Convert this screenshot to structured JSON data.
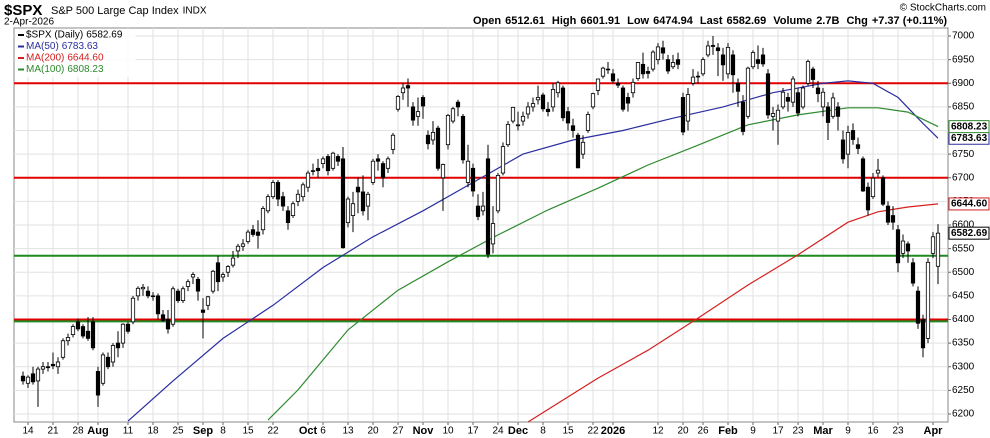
{
  "header": {
    "symbol": "$SPX",
    "name": "S&P 500 Large Cap Index",
    "exchange": "INDX",
    "date": "2-Apr-2026",
    "credit": "© StockCharts.com",
    "quote": [
      {
        "label": "Open",
        "value": 6512.61
      },
      {
        "label": "High",
        "value": 6601.91
      },
      {
        "label": "Low",
        "value": 6474.94
      },
      {
        "label": "Last",
        "value": 6582.69
      },
      {
        "label": "Volume",
        "value": "2.7B"
      },
      {
        "label": "Chg",
        "value": "+7.37 (+0.11%)"
      }
    ]
  },
  "chart_data": {
    "type": "candlestick",
    "color": "#000000",
    "up_fill": "#ffffff",
    "legend": {
      "name": "$SPX (Daily)",
      "last": 6582.69
    },
    "candles": [
      [
        6280,
        6290,
        6262,
        6270
      ],
      [
        6265,
        6282,
        6255,
        6278
      ],
      [
        6285,
        6300,
        6262,
        6268
      ],
      [
        6270,
        6300,
        6215,
        6295
      ],
      [
        6295,
        6310,
        6285,
        6300
      ],
      [
        6300,
        6310,
        6290,
        6298
      ],
      [
        6305,
        6330,
        6295,
        6302
      ],
      [
        6300,
        6320,
        6285,
        6310
      ],
      [
        6320,
        6360,
        6315,
        6355
      ],
      [
        6355,
        6370,
        6345,
        6362
      ],
      [
        6368,
        6390,
        6362,
        6385
      ],
      [
        6395,
        6402,
        6375,
        6380
      ],
      [
        6385,
        6390,
        6360,
        6365
      ],
      [
        6375,
        6405,
        6355,
        6360
      ],
      [
        6395,
        6405,
        6335,
        6340
      ],
      [
        6290,
        6300,
        6215,
        6240
      ],
      [
        6265,
        6330,
        6260,
        6325
      ],
      [
        6320,
        6330,
        6295,
        6300
      ],
      [
        6310,
        6350,
        6300,
        6345
      ],
      [
        6350,
        6375,
        6320,
        6340
      ],
      [
        6350,
        6392,
        6340,
        6390
      ],
      [
        6390,
        6395,
        6370,
        6375
      ],
      [
        6395,
        6450,
        6390,
        6445
      ],
      [
        6450,
        6470,
        6440,
        6466
      ],
      [
        6465,
        6475,
        6450,
        6468
      ],
      [
        6460,
        6470,
        6445,
        6450
      ],
      [
        6450,
        6458,
        6440,
        6450
      ],
      [
        6450,
        6455,
        6400,
        6412
      ],
      [
        6410,
        6420,
        6395,
        6398
      ],
      [
        6400,
        6420,
        6370,
        6380
      ],
      [
        6390,
        6470,
        6385,
        6465
      ],
      [
        6460,
        6465,
        6435,
        6440
      ],
      [
        6440,
        6470,
        6435,
        6465
      ],
      [
        6470,
        6485,
        6460,
        6480
      ],
      [
        6490,
        6500,
        6475,
        6495
      ],
      [
        6485,
        6490,
        6440,
        6460
      ],
      [
        6420,
        6445,
        6360,
        6415
      ],
      [
        6430,
        6450,
        6420,
        6448
      ],
      [
        6460,
        6505,
        6455,
        6502
      ],
      [
        6520,
        6535,
        6460,
        6480
      ],
      [
        6490,
        6500,
        6480,
        6495
      ],
      [
        6500,
        6515,
        6490,
        6512
      ],
      [
        6515,
        6545,
        6510,
        6530
      ],
      [
        6545,
        6560,
        6530,
        6555
      ],
      [
        6555,
        6570,
        6545,
        6560
      ],
      [
        6565,
        6590,
        6560,
        6585
      ],
      [
        6590,
        6600,
        6575,
        6580
      ],
      [
        6585,
        6610,
        6550,
        6578
      ],
      [
        6590,
        6640,
        6580,
        6635
      ],
      [
        6630,
        6665,
        6625,
        6660
      ],
      [
        6660,
        6695,
        6655,
        6690
      ],
      [
        6690,
        6695,
        6640,
        6655
      ],
      [
        6660,
        6670,
        6630,
        6640
      ],
      [
        6630,
        6640,
        6590,
        6605
      ],
      [
        6620,
        6650,
        6615,
        6645
      ],
      [
        6650,
        6675,
        6640,
        6665
      ],
      [
        6660,
        6690,
        6650,
        6685
      ],
      [
        6680,
        6715,
        6670,
        6710
      ],
      [
        6715,
        6730,
        6705,
        6715
      ],
      [
        6720,
        6740,
        6700,
        6715
      ],
      [
        6730,
        6745,
        6720,
        6740
      ],
      [
        6745,
        6750,
        6705,
        6715
      ],
      [
        6720,
        6755,
        6715,
        6752
      ],
      [
        6745,
        6750,
        6725,
        6735
      ],
      [
        6740,
        6765,
        6550,
        6552
      ],
      [
        6605,
        6660,
        6595,
        6655
      ],
      [
        6620,
        6670,
        6585,
        6645
      ],
      [
        6680,
        6700,
        6625,
        6670
      ],
      [
        6670,
        6705,
        6620,
        6630
      ],
      [
        6640,
        6670,
        6610,
        6665
      ],
      [
        6690,
        6740,
        6685,
        6735
      ],
      [
        6740,
        6750,
        6715,
        6735
      ],
      [
        6730,
        6735,
        6680,
        6700
      ],
      [
        6720,
        6745,
        6710,
        6740
      ],
      [
        6760,
        6795,
        6750,
        6790
      ],
      [
        6845,
        6875,
        6840,
        6872
      ],
      [
        6880,
        6900,
        6865,
        6890
      ],
      [
        6895,
        6910,
        6850,
        6890
      ],
      [
        6850,
        6860,
        6810,
        6822
      ],
      [
        6830,
        6870,
        6810,
        6840
      ],
      [
        6870,
        6875,
        6825,
        6852
      ],
      [
        6790,
        6800,
        6760,
        6772
      ],
      [
        6780,
        6820,
        6770,
        6796
      ],
      [
        6805,
        6810,
        6715,
        6720
      ],
      [
        6700,
        6730,
        6630,
        6728
      ],
      [
        6770,
        6835,
        6760,
        6832
      ],
      [
        6820,
        6850,
        6815,
        6846
      ],
      [
        6860,
        6865,
        6830,
        6850
      ],
      [
        6830,
        6835,
        6730,
        6738
      ],
      [
        6690,
        6770,
        6680,
        6735
      ],
      [
        6720,
        6730,
        6660,
        6672
      ],
      [
        6640,
        6665,
        6610,
        6618
      ],
      [
        6630,
        6670,
        6620,
        6640
      ],
      [
        6740,
        6770,
        6530,
        6538
      ],
      [
        6560,
        6640,
        6540,
        6603
      ],
      [
        6630,
        6710,
        6625,
        6705
      ],
      [
        6710,
        6775,
        6705,
        6766
      ],
      [
        6770,
        6820,
        6765,
        6813
      ],
      [
        6820,
        6850,
        6815,
        6849
      ],
      [
        6810,
        6840,
        6800,
        6812
      ],
      [
        6820,
        6840,
        6810,
        6830
      ],
      [
        6835,
        6860,
        6825,
        6850
      ],
      [
        6850,
        6870,
        6840,
        6857
      ],
      [
        6865,
        6895,
        6855,
        6870
      ],
      [
        6875,
        6880,
        6840,
        6846
      ],
      [
        6845,
        6860,
        6830,
        6840
      ],
      [
        6850,
        6900,
        6840,
        6887
      ],
      [
        6880,
        6905,
        6870,
        6901
      ],
      [
        6890,
        6895,
        6820,
        6827
      ],
      [
        6840,
        6850,
        6800,
        6816
      ],
      [
        6810,
        6825,
        6785,
        6800
      ],
      [
        6790,
        6795,
        6720,
        6721
      ],
      [
        6750,
        6790,
        6740,
        6775
      ],
      [
        6800,
        6840,
        6795,
        6834
      ],
      [
        6850,
        6880,
        6845,
        6878
      ],
      [
        6885,
        6910,
        6875,
        6909
      ],
      [
        6915,
        6935,
        6910,
        6932
      ],
      [
        6930,
        6945,
        6920,
        6930
      ],
      [
        6920,
        6930,
        6900,
        6905
      ],
      [
        6900,
        6910,
        6890,
        6896
      ],
      [
        6890,
        6895,
        6840,
        6845
      ],
      [
        6870,
        6880,
        6840,
        6858
      ],
      [
        6880,
        6910,
        6870,
        6902
      ],
      [
        6910,
        6945,
        6905,
        6944
      ],
      [
        6940,
        6965,
        6910,
        6920
      ],
      [
        6925,
        6935,
        6910,
        6921
      ],
      [
        6930,
        6970,
        6925,
        6966
      ],
      [
        6950,
        6985,
        6940,
        6977
      ],
      [
        6975,
        6990,
        6950,
        6964
      ],
      [
        6950,
        6960,
        6920,
        6926
      ],
      [
        6935,
        6960,
        6930,
        6944
      ],
      [
        6950,
        6965,
        6930,
        6940
      ],
      [
        6870,
        6880,
        6790,
        6797
      ],
      [
        6820,
        6890,
        6800,
        6876
      ],
      [
        6900,
        6930,
        6895,
        6913
      ],
      [
        6915,
        6925,
        6900,
        6915
      ],
      [
        6920,
        6955,
        6915,
        6950
      ],
      [
        6960,
        6990,
        6955,
        6979
      ],
      [
        6980,
        7000,
        6960,
        6978
      ],
      [
        6975,
        6985,
        6915,
        6969
      ],
      [
        6960,
        6975,
        6905,
        6939
      ],
      [
        6920,
        6985,
        6910,
        6976
      ],
      [
        6960,
        6970,
        6880,
        6918
      ],
      [
        6900,
        6910,
        6850,
        6883
      ],
      [
        6860,
        6875,
        6790,
        6798
      ],
      [
        6830,
        6935,
        6825,
        6932
      ],
      [
        6935,
        6970,
        6930,
        6965
      ],
      [
        6950,
        6980,
        6930,
        6942
      ],
      [
        6960,
        6975,
        6935,
        6941
      ],
      [
        6920,
        6930,
        6825,
        6833
      ],
      [
        6830,
        6850,
        6800,
        6836
      ],
      [
        6820,
        6855,
        6770,
        6843
      ],
      [
        6850,
        6890,
        6845,
        6881
      ],
      [
        6870,
        6880,
        6840,
        6862
      ],
      [
        6860,
        6915,
        6850,
        6909
      ],
      [
        6880,
        6890,
        6830,
        6837
      ],
      [
        6850,
        6895,
        6845,
        6890
      ],
      [
        6900,
        6950,
        6895,
        6946
      ],
      [
        6930,
        6935,
        6890,
        6908
      ],
      [
        6890,
        6905,
        6860,
        6878
      ],
      [
        6850,
        6890,
        6830,
        6881
      ],
      [
        6850,
        6860,
        6780,
        6817
      ],
      [
        6830,
        6880,
        6825,
        6869
      ],
      [
        6850,
        6860,
        6800,
        6830
      ],
      [
        6780,
        6800,
        6730,
        6740
      ],
      [
        6750,
        6810,
        6720,
        6796
      ],
      [
        6800,
        6815,
        6770,
        6781
      ],
      [
        6770,
        6785,
        6750,
        6762
      ],
      [
        6740,
        6745,
        6670,
        6672
      ],
      [
        6680,
        6690,
        6620,
        6632
      ],
      [
        6660,
        6710,
        6655,
        6699
      ],
      [
        6710,
        6740,
        6700,
        6716
      ],
      [
        6700,
        6705,
        6640,
        6644
      ],
      [
        6640,
        6650,
        6600,
        6606
      ],
      [
        6620,
        6640,
        6590,
        6606
      ],
      [
        6590,
        6600,
        6500,
        6520
      ],
      [
        6540,
        6580,
        6530,
        6566
      ],
      [
        6560,
        6565,
        6520,
        6545
      ],
      [
        6520,
        6530,
        6470,
        6477
      ],
      [
        6460,
        6470,
        6380,
        6392
      ],
      [
        6400,
        6410,
        6320,
        6340
      ],
      [
        6360,
        6530,
        6350,
        6521
      ],
      [
        6540,
        6585,
        6530,
        6575
      ],
      [
        6512.61,
        6601.91,
        6474.94,
        6582.69
      ]
    ],
    "series": [
      {
        "name": "MA(50)",
        "color": "#2a2f9e",
        "last": 6783.63,
        "x": [
          21,
          30,
          40,
          50,
          60,
          70,
          80,
          90,
          100,
          110,
          120,
          130,
          140,
          150,
          160,
          165,
          170,
          175,
          180,
          183
        ],
        "values": [
          6185,
          6270,
          6360,
          6430,
          6510,
          6575,
          6630,
          6690,
          6750,
          6780,
          6800,
          6826,
          6850,
          6880,
          6900,
          6905,
          6900,
          6870,
          6815,
          6783.63
        ]
      },
      {
        "name": "MA(200)",
        "color": "#d42020",
        "last": {
          "value": 6644.6,
          "label": "6644.60"
        },
        "x": [
          101,
          115,
          125,
          135,
          145,
          155,
          165,
          171,
          177,
          183
        ],
        "values": [
          6183,
          6276,
          6335,
          6403,
          6473,
          6537,
          6606,
          6628,
          6638,
          6644.6
        ]
      },
      {
        "name": "MA(100)",
        "color": "#2e8a2e",
        "last": 6808.23,
        "x": [
          49,
          55,
          65,
          75,
          85,
          95,
          105,
          115,
          125,
          135,
          145,
          155,
          165,
          171,
          177,
          183
        ],
        "values": [
          6187,
          6251,
          6378,
          6462,
          6522,
          6579,
          6632,
          6678,
          6727,
          6769,
          6812,
          6833,
          6848,
          6848,
          6839,
          6808.23
        ]
      }
    ],
    "hlines": [
      {
        "value": 6900,
        "color": "#e00000"
      },
      {
        "value": 6700,
        "color": "#e00000"
      },
      {
        "value": 6535,
        "color": "#1f8a1f"
      },
      {
        "value": 6400,
        "color": "#e00000"
      },
      {
        "value": 6396,
        "color": "#1f8a1f"
      }
    ],
    "ylim": [
      6183,
      7017
    ],
    "yticks": [
      6200,
      6250,
      6300,
      6350,
      6400,
      6450,
      6500,
      6550,
      6600,
      6650,
      6700,
      6750,
      6800,
      6850,
      6900,
      6950,
      7000
    ],
    "xlim": [
      -1.8,
      185
    ],
    "xticks": [
      {
        "value": 1,
        "label": "14"
      },
      {
        "value": 6,
        "label": "21"
      },
      {
        "value": 11,
        "label": "28"
      },
      {
        "value": 15,
        "label": "Aug"
      },
      {
        "value": 21,
        "label": "11"
      },
      {
        "value": 26,
        "label": "18"
      },
      {
        "value": 31,
        "label": "25"
      },
      {
        "value": 36,
        "label": "Sep"
      },
      {
        "value": 40,
        "label": "8"
      },
      {
        "value": 45,
        "label": "15"
      },
      {
        "value": 50,
        "label": "22"
      },
      {
        "value": 57,
        "label": "Oct"
      },
      {
        "value": 60,
        "label": "6"
      },
      {
        "value": 65,
        "label": "13"
      },
      {
        "value": 70,
        "label": "20"
      },
      {
        "value": 75,
        "label": "27"
      },
      {
        "value": 80,
        "label": "Nov"
      },
      {
        "value": 85,
        "label": "10"
      },
      {
        "value": 90,
        "label": "17"
      },
      {
        "value": 95,
        "label": "24"
      },
      {
        "value": 99,
        "label": "Dec"
      },
      {
        "value": 104,
        "label": "8"
      },
      {
        "value": 109,
        "label": "15"
      },
      {
        "value": 114,
        "label": "22"
      },
      {
        "value": 118,
        "label": "2026"
      },
      {
        "value": 127,
        "label": "12"
      },
      {
        "value": 132,
        "label": "20"
      },
      {
        "value": 136,
        "label": "26"
      },
      {
        "value": 141,
        "label": "Feb"
      },
      {
        "value": 146,
        "label": "9"
      },
      {
        "value": 151,
        "label": "17"
      },
      {
        "value": 155,
        "label": "23"
      },
      {
        "value": 160,
        "label": "Mar"
      },
      {
        "value": 165,
        "label": "9"
      },
      {
        "value": 170,
        "label": "16"
      },
      {
        "value": 175,
        "label": "23"
      },
      {
        "value": 182,
        "label": "Apr"
      }
    ],
    "grid": true
  }
}
